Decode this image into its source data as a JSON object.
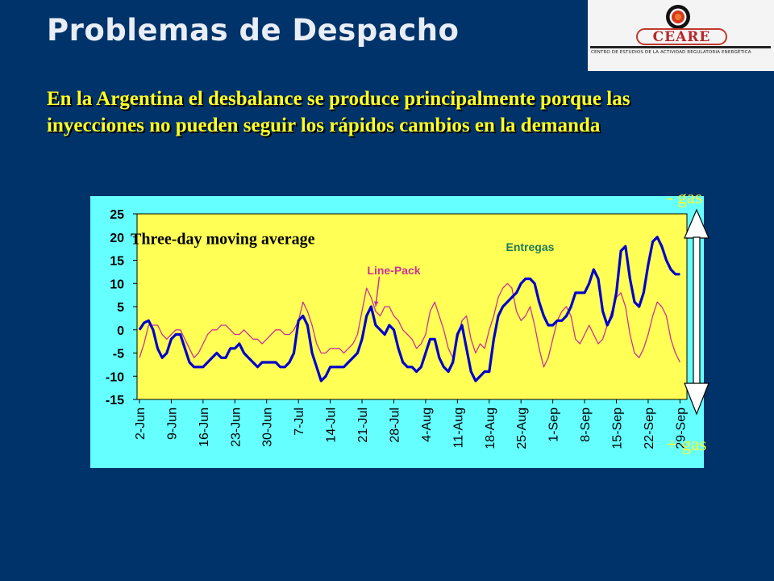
{
  "slide": {
    "title": "Problemas de Despacho",
    "subtitle": "En la Argentina el desbalance se produce principalmente porque las inyecciones no pueden seguir los rápidos cambios en la demanda",
    "label_top": "- gas",
    "label_bottom": "+ gas"
  },
  "logo": {
    "name": "CEARE",
    "tagline": "CENTRO DE ESTUDIOS DE LA ACTIVIDAD REGULATORIA ENERGÉTICA"
  },
  "colors": {
    "background": "#00336a",
    "chart_outer": "#66ffff",
    "plot_area": "#ffff55",
    "entregas": "#0000cc",
    "line_pack": "#cc3399",
    "text_accent": "#ffff22"
  },
  "chart_data": {
    "type": "line",
    "title": "Three-day moving average",
    "xlabel": "",
    "ylabel": "",
    "ylim": [
      -15,
      25
    ],
    "yticks": [
      25,
      20,
      15,
      10,
      5,
      0,
      -5,
      -10,
      -15
    ],
    "x_range": [
      0,
      120
    ],
    "grid": false,
    "categories": [
      {
        "label": "2-Jun",
        "x": 0
      },
      {
        "label": "9-Jun",
        "x": 7
      },
      {
        "label": "16-Jun",
        "x": 14
      },
      {
        "label": "23-Jun",
        "x": 21
      },
      {
        "label": "30-Jun",
        "x": 28
      },
      {
        "label": "7-Jul",
        "x": 35
      },
      {
        "label": "14-Jul",
        "x": 42
      },
      {
        "label": "21-Jul",
        "x": 49
      },
      {
        "label": "28-Jul",
        "x": 56
      },
      {
        "label": "4-Aug",
        "x": 63
      },
      {
        "label": "11-Aug",
        "x": 70
      },
      {
        "label": "18-Aug",
        "x": 77
      },
      {
        "label": "25-Aug",
        "x": 84
      },
      {
        "label": "1-Sep",
        "x": 91
      },
      {
        "label": "8-Sep",
        "x": 98
      },
      {
        "label": "15-Sep",
        "x": 105
      },
      {
        "label": "22-Sep",
        "x": 112
      },
      {
        "label": "29-Sep",
        "x": 119
      }
    ],
    "annotations": [
      {
        "text": "Line-Pack",
        "series": "Line-Pack",
        "x": 56,
        "y": 12,
        "arrow_to": {
          "x": 52,
          "y": 5
        }
      },
      {
        "text": "Entregas",
        "series": "Entregas",
        "x": 86,
        "y": 17
      }
    ],
    "series": [
      {
        "name": "Entregas",
        "points": [
          [
            0,
            0
          ],
          [
            1,
            1.5
          ],
          [
            2,
            2
          ],
          [
            3,
            0
          ],
          [
            4,
            -4
          ],
          [
            5,
            -6
          ],
          [
            6,
            -5
          ],
          [
            7,
            -2
          ],
          [
            8,
            -1
          ],
          [
            9,
            -1
          ],
          [
            10,
            -4
          ],
          [
            11,
            -7
          ],
          [
            12,
            -8
          ],
          [
            13,
            -8
          ],
          [
            14,
            -8
          ],
          [
            15,
            -7
          ],
          [
            16,
            -6
          ],
          [
            17,
            -5
          ],
          [
            18,
            -6
          ],
          [
            19,
            -6
          ],
          [
            20,
            -4
          ],
          [
            21,
            -4
          ],
          [
            22,
            -3
          ],
          [
            23,
            -5
          ],
          [
            24,
            -6
          ],
          [
            25,
            -7
          ],
          [
            26,
            -8
          ],
          [
            27,
            -7
          ],
          [
            28,
            -7
          ],
          [
            29,
            -7
          ],
          [
            30,
            -7
          ],
          [
            31,
            -8
          ],
          [
            32,
            -8
          ],
          [
            33,
            -7
          ],
          [
            34,
            -5
          ],
          [
            35,
            2
          ],
          [
            36,
            3
          ],
          [
            37,
            1
          ],
          [
            38,
            -5
          ],
          [
            39,
            -8
          ],
          [
            40,
            -11
          ],
          [
            41,
            -10
          ],
          [
            42,
            -8
          ],
          [
            43,
            -8
          ],
          [
            44,
            -8
          ],
          [
            45,
            -8
          ],
          [
            46,
            -7
          ],
          [
            47,
            -6
          ],
          [
            48,
            -5
          ],
          [
            49,
            -2
          ],
          [
            50,
            3
          ],
          [
            51,
            5
          ],
          [
            52,
            1
          ],
          [
            53,
            0
          ],
          [
            54,
            -1
          ],
          [
            55,
            1
          ],
          [
            56,
            0
          ],
          [
            57,
            -4
          ],
          [
            58,
            -7
          ],
          [
            59,
            -8
          ],
          [
            60,
            -8
          ],
          [
            61,
            -9
          ],
          [
            62,
            -8
          ],
          [
            63,
            -5
          ],
          [
            64,
            -2
          ],
          [
            65,
            -2
          ],
          [
            66,
            -6
          ],
          [
            67,
            -8
          ],
          [
            68,
            -9
          ],
          [
            69,
            -7
          ],
          [
            70,
            -1
          ],
          [
            71,
            1
          ],
          [
            72,
            -4
          ],
          [
            73,
            -9
          ],
          [
            74,
            -11
          ],
          [
            75,
            -10
          ],
          [
            76,
            -9
          ],
          [
            77,
            -9
          ],
          [
            78,
            -2
          ],
          [
            79,
            3
          ],
          [
            80,
            5
          ],
          [
            81,
            6
          ],
          [
            82,
            7
          ],
          [
            83,
            8
          ],
          [
            84,
            10
          ],
          [
            85,
            11
          ],
          [
            86,
            11
          ],
          [
            87,
            10
          ],
          [
            88,
            6
          ],
          [
            89,
            3
          ],
          [
            90,
            1
          ],
          [
            91,
            1
          ],
          [
            92,
            2
          ],
          [
            93,
            2
          ],
          [
            94,
            3
          ],
          [
            95,
            5
          ],
          [
            96,
            8
          ],
          [
            97,
            8
          ],
          [
            98,
            8
          ],
          [
            99,
            10
          ],
          [
            100,
            13
          ],
          [
            101,
            11
          ],
          [
            102,
            4
          ],
          [
            103,
            1
          ],
          [
            104,
            3
          ],
          [
            105,
            8
          ],
          [
            106,
            17
          ],
          [
            107,
            18
          ],
          [
            108,
            11
          ],
          [
            109,
            6
          ],
          [
            110,
            5
          ],
          [
            111,
            8
          ],
          [
            112,
            14
          ],
          [
            113,
            19
          ],
          [
            114,
            20
          ],
          [
            115,
            18
          ],
          [
            116,
            15
          ],
          [
            117,
            13
          ],
          [
            118,
            12
          ],
          [
            119,
            12
          ]
        ]
      },
      {
        "name": "Line-Pack",
        "points": [
          [
            0,
            -6
          ],
          [
            1,
            -3
          ],
          [
            2,
            1
          ],
          [
            3,
            1
          ],
          [
            4,
            1
          ],
          [
            5,
            -1
          ],
          [
            6,
            -2
          ],
          [
            7,
            -1
          ],
          [
            8,
            0
          ],
          [
            9,
            0
          ],
          [
            10,
            -2
          ],
          [
            11,
            -4
          ],
          [
            12,
            -6
          ],
          [
            13,
            -5
          ],
          [
            14,
            -3
          ],
          [
            15,
            -1
          ],
          [
            16,
            0
          ],
          [
            17,
            0
          ],
          [
            18,
            1
          ],
          [
            19,
            1
          ],
          [
            20,
            0
          ],
          [
            21,
            -1
          ],
          [
            22,
            -1
          ],
          [
            23,
            0
          ],
          [
            24,
            -1
          ],
          [
            25,
            -2
          ],
          [
            26,
            -2
          ],
          [
            27,
            -3
          ],
          [
            28,
            -2
          ],
          [
            29,
            -1
          ],
          [
            30,
            0
          ],
          [
            31,
            0
          ],
          [
            32,
            -1
          ],
          [
            33,
            -1
          ],
          [
            34,
            0
          ],
          [
            35,
            2
          ],
          [
            36,
            6
          ],
          [
            37,
            4
          ],
          [
            38,
            1
          ],
          [
            39,
            -3
          ],
          [
            40,
            -5
          ],
          [
            41,
            -5
          ],
          [
            42,
            -4
          ],
          [
            43,
            -4
          ],
          [
            44,
            -4
          ],
          [
            45,
            -5
          ],
          [
            46,
            -4
          ],
          [
            47,
            -3
          ],
          [
            48,
            -1
          ],
          [
            49,
            4
          ],
          [
            50,
            9
          ],
          [
            51,
            7
          ],
          [
            52,
            4
          ],
          [
            53,
            3
          ],
          [
            54,
            5
          ],
          [
            55,
            5
          ],
          [
            56,
            3
          ],
          [
            57,
            2
          ],
          [
            58,
            0
          ],
          [
            59,
            -1
          ],
          [
            60,
            -2
          ],
          [
            61,
            -4
          ],
          [
            62,
            -3
          ],
          [
            63,
            -1
          ],
          [
            64,
            4
          ],
          [
            65,
            6
          ],
          [
            66,
            3
          ],
          [
            67,
            0
          ],
          [
            68,
            -4
          ],
          [
            69,
            -6
          ],
          [
            70,
            -2
          ],
          [
            71,
            2
          ],
          [
            72,
            3
          ],
          [
            73,
            -2
          ],
          [
            74,
            -5
          ],
          [
            75,
            -3
          ],
          [
            76,
            -4
          ],
          [
            77,
            0
          ],
          [
            78,
            3
          ],
          [
            79,
            7
          ],
          [
            80,
            9
          ],
          [
            81,
            10
          ],
          [
            82,
            9
          ],
          [
            83,
            4
          ],
          [
            84,
            2
          ],
          [
            85,
            3
          ],
          [
            86,
            5
          ],
          [
            87,
            1
          ],
          [
            88,
            -4
          ],
          [
            89,
            -8
          ],
          [
            90,
            -6
          ],
          [
            91,
            -2
          ],
          [
            92,
            2
          ],
          [
            93,
            4
          ],
          [
            94,
            5
          ],
          [
            95,
            3
          ],
          [
            96,
            -2
          ],
          [
            97,
            -3
          ],
          [
            98,
            -1
          ],
          [
            99,
            1
          ],
          [
            100,
            -1
          ],
          [
            101,
            -3
          ],
          [
            102,
            -2
          ],
          [
            103,
            1
          ],
          [
            104,
            4
          ],
          [
            105,
            7
          ],
          [
            106,
            8
          ],
          [
            107,
            5
          ],
          [
            108,
            -1
          ],
          [
            109,
            -5
          ],
          [
            110,
            -6
          ],
          [
            111,
            -4
          ],
          [
            112,
            -1
          ],
          [
            113,
            3
          ],
          [
            114,
            6
          ],
          [
            115,
            5
          ],
          [
            116,
            3
          ],
          [
            117,
            -2
          ],
          [
            118,
            -5
          ],
          [
            119,
            -7
          ]
        ]
      }
    ]
  }
}
